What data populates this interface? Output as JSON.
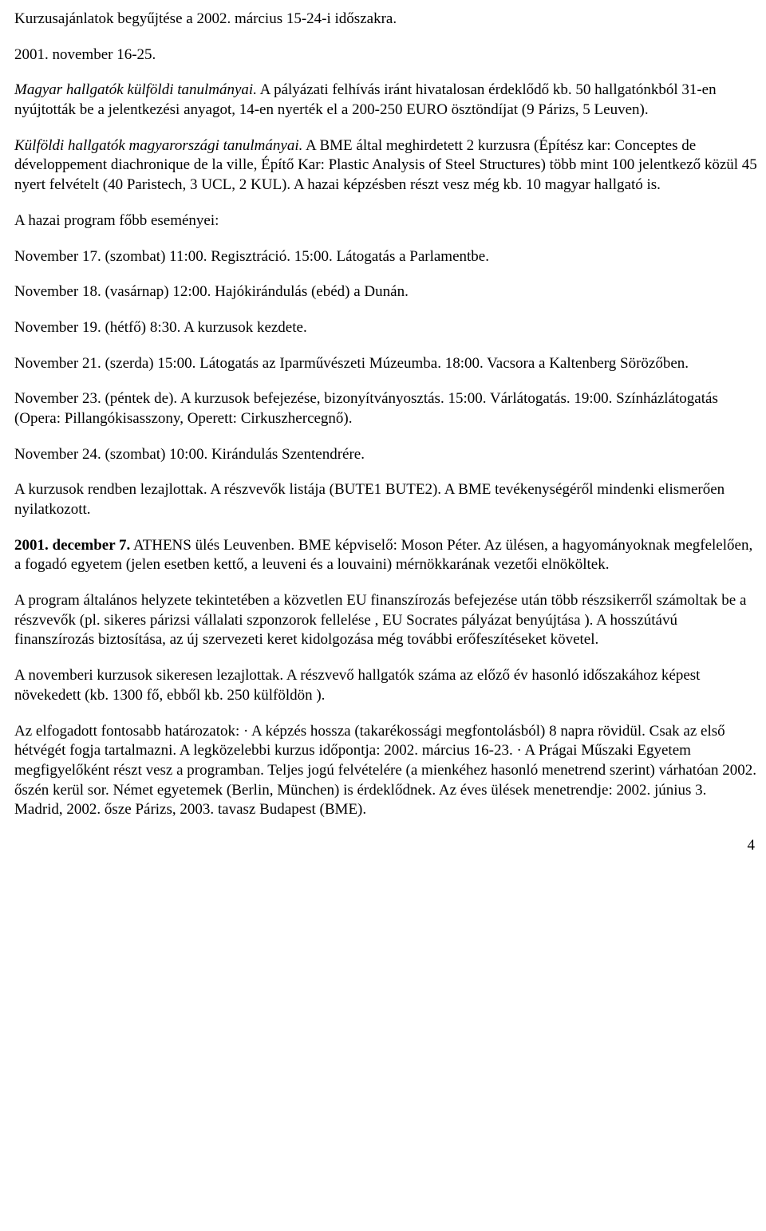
{
  "paragraphs": {
    "p1": "Kurzusajánlatok begyűjtése a 2002. március 15-24-i időszakra.",
    "p2": "2001. november 16-25.",
    "p3_prefix_italic": "Magyar hallgatók külföldi tanulmányai.",
    "p3_rest": " A pályázati felhívás iránt hivatalosan érdeklődő kb. 50 hallgatónkból 31-en nyújtották be a jelentkezési anyagot, 14-en nyerték el a 200-250 EURO ösztöndíjat (9 Párizs, 5 Leuven).",
    "p4_prefix_italic": "Külföldi hallgatók magyarországi tanulmányai.",
    "p4_rest": " A BME által meghirdetett 2 kurzusra (Építész kar: Conceptes de développement diachronique de la ville, Építő Kar: Plastic Analysis of Steel Structures) több mint 100 jelentkező közül 45 nyert felvételt (40 Paristech, 3 UCL, 2 KUL). A hazai képzésben részt vesz még kb. 10 magyar hallgató is.",
    "p5": "A hazai program főbb eseményei:",
    "p6": "November 17. (szombat) 11:00. Regisztráció. 15:00. Látogatás a Parlamentbe.",
    "p7": "November 18. (vasárnap) 12:00. Hajókirándulás (ebéd) a Dunán.",
    "p8": "November 19. (hétfő) 8:30. A kurzusok kezdete.",
    "p9": "November 21. (szerda) 15:00. Látogatás az Iparművészeti Múzeumba. 18:00. Vacsora a Kaltenberg Sörözőben.",
    "p10": "November 23. (péntek de). A kurzusok befejezése, bizonyítványosztás. 15:00. Várlátogatás. 19:00. Színházlátogatás (Opera: Pillangókisasszony, Operett: Cirkuszhercegnő).",
    "p11": "November 24. (szombat) 10:00. Kirándulás Szentendrére.",
    "p12": "A kurzusok rendben lezajlottak. A részvevők listája (BUTE1 BUTE2). A BME tevékenységéről mindenki elismerően nyilatkozott.",
    "p13_bold": "2001. december 7.",
    "p13_rest": " ATHENS ülés Leuvenben. BME képviselő: Moson Péter. Az ülésen, a hagyományoknak megfelelően, a fogadó egyetem (jelen esetben kettő, a leuveni és a louvaini) mérnökkarának vezetői elnököltek.",
    "p14": "A program általános helyzete tekintetében a közvetlen EU finanszírozás befejezése után több részsikerről számoltak be a részvevők (pl. sikeres párizsi vállalati szponzorok fellelése , EU Socrates pályázat benyújtása ). A hosszútávú finanszírozás biztosítása, az új szervezeti keret kidolgozása még további erőfeszítéseket követel.",
    "p15": "A novemberi kurzusok sikeresen lezajlottak. A részvevő hallgatók száma az előző év hasonló időszakához képest növekedett (kb. 1300 fő, ebből kb. 250 külföldön ).",
    "p16": "Az elfogadott fontosabb határozatok: · A képzés hossza (takarékossági megfontolásból) 8 napra rövidül. Csak az első hétvégét fogja tartalmazni. A legközelebbi kurzus időpontja: 2002. március 16-23. · A Prágai Műszaki Egyetem megfigyelőként részt vesz a programban. Teljes jogú felvételére (a mienkéhez hasonló menetrend szerint) várhatóan 2002. őszén kerül sor. Német egyetemek (Berlin, München) is érdeklődnek. Az éves ülések menetrendje: 2002. június 3. Madrid, 2002. ősze Párizs, 2003. tavasz Budapest (BME)."
  },
  "page_number": "4"
}
